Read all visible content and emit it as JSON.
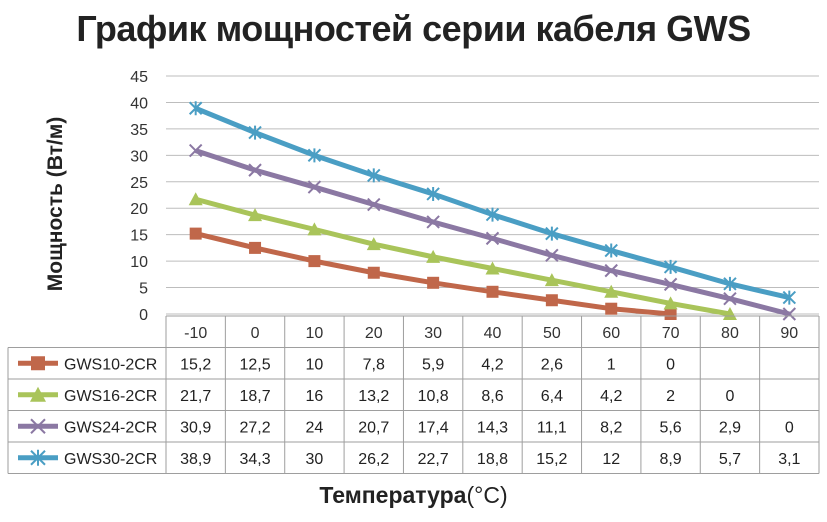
{
  "title": "График мощностей серии кабеля GWS",
  "chart_data": {
    "type": "line",
    "title": "График мощностей серии кабеля GWS",
    "ylabel": "Мощность (Вт/м)",
    "xlabel_main": "Температура",
    "xlabel_unit": "(°C)",
    "ylim": [
      0,
      45
    ],
    "yticks": [
      0,
      5,
      10,
      15,
      20,
      25,
      30,
      35,
      40,
      45
    ],
    "grid": "horizontal",
    "legend": "data-table",
    "categories": [
      "-10",
      "0",
      "10",
      "20",
      "30",
      "40",
      "50",
      "60",
      "70",
      "80",
      "90"
    ],
    "series": [
      {
        "name": "GWS10-2CR",
        "color": "#c0674a",
        "marker": "square",
        "values": [
          15.2,
          12.5,
          10,
          7.8,
          5.9,
          4.2,
          2.6,
          1,
          0,
          null,
          null
        ],
        "labels": [
          "15,2",
          "12,5",
          "10",
          "7,8",
          "5,9",
          "4,2",
          "2,6",
          "1",
          "0",
          "",
          ""
        ]
      },
      {
        "name": "GWS16-2CR",
        "color": "#a9c45a",
        "marker": "triangle",
        "values": [
          21.7,
          18.7,
          16,
          13.2,
          10.8,
          8.6,
          6.4,
          4.2,
          2,
          0,
          null
        ],
        "labels": [
          "21,7",
          "18,7",
          "16",
          "13,2",
          "10,8",
          "8,6",
          "6,4",
          "4,2",
          "2",
          "0",
          ""
        ]
      },
      {
        "name": "GWS24-2CR",
        "color": "#8b78a3",
        "marker": "x",
        "values": [
          30.9,
          27.2,
          24,
          20.7,
          17.4,
          14.3,
          11.1,
          8.2,
          5.6,
          2.9,
          0
        ],
        "labels": [
          "30,9",
          "27,2",
          "24",
          "20,7",
          "17,4",
          "14,3",
          "11,1",
          "8,2",
          "5,6",
          "2,9",
          "0"
        ]
      },
      {
        "name": "GWS30-2CR",
        "color": "#4a9ec4",
        "marker": "star",
        "values": [
          38.9,
          34.3,
          30,
          26.2,
          22.7,
          18.8,
          15.2,
          12,
          8.9,
          5.7,
          3.1
        ],
        "labels": [
          "38,9",
          "34,3",
          "30",
          "26,2",
          "22,7",
          "18,8",
          "15,2",
          "12",
          "8,9",
          "5,7",
          "3,1"
        ]
      }
    ]
  }
}
